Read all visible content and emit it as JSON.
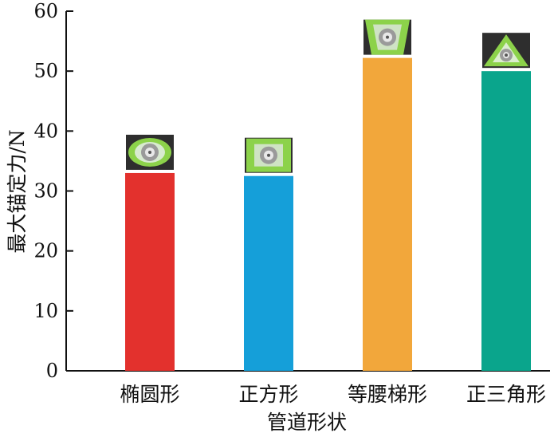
{
  "chart_data": {
    "type": "bar",
    "title": "",
    "xlabel": "管道形状",
    "ylabel": "最大锚定力/N",
    "categories": [
      "椭圆形",
      "正方形",
      "等腰梯形",
      "正三角形"
    ],
    "values": [
      33.0,
      32.5,
      52.2,
      50.0
    ],
    "colors": [
      "#e3312d",
      "#159fd9",
      "#f2a73b",
      "#0aa58c"
    ],
    "ylim": [
      0,
      60
    ],
    "yticks": [
      0,
      10,
      20,
      30,
      40,
      50,
      60
    ],
    "grid": false,
    "legend": "none",
    "bar_thumbnails": [
      "ellipse-pipe-icon",
      "square-pipe-icon",
      "trapezoid-pipe-icon",
      "triangle-pipe-icon"
    ]
  }
}
